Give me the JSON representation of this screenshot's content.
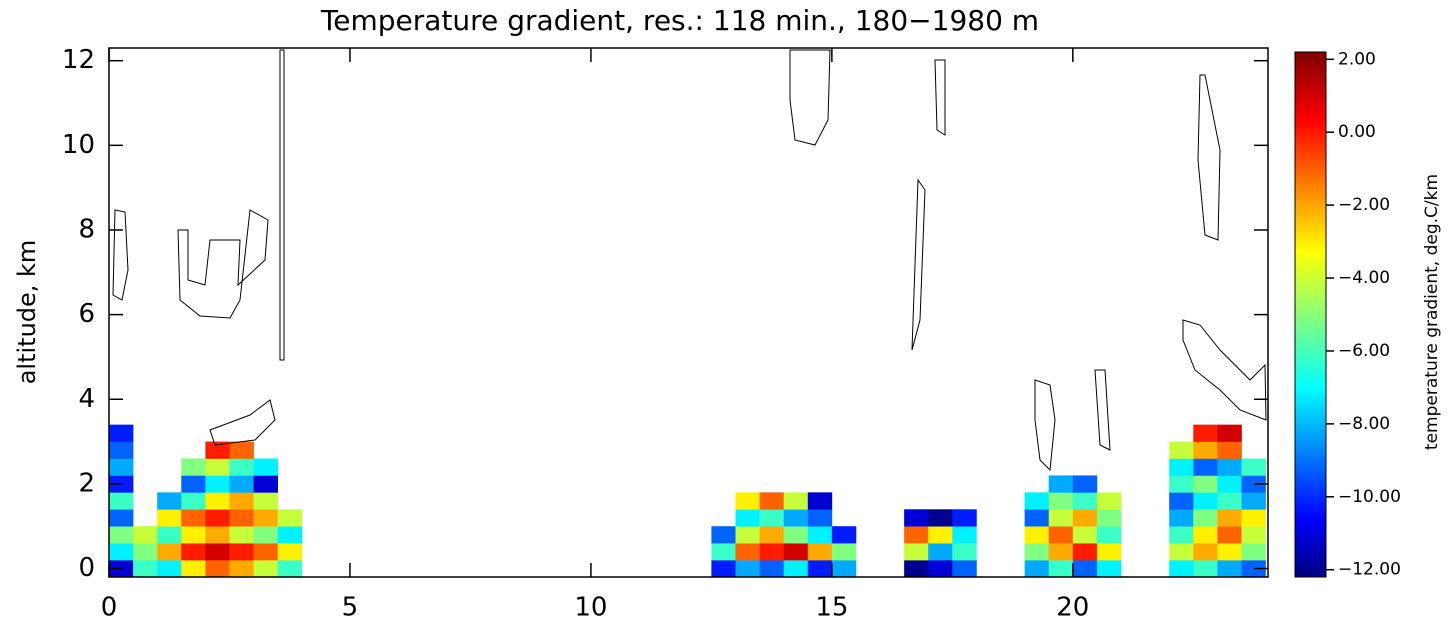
{
  "chart_data": {
    "type": "heatmap",
    "title": "Temperature gradient, res.: 118 min., 180−1980 m",
    "y_label": "altitude, km",
    "colorbar_label": "temperature gradient, deg.C/km",
    "colormap": "jet",
    "xlim": [
      0,
      24.05
    ],
    "ylim": [
      -0.2,
      12.3
    ],
    "xticks": [
      0,
      5,
      10,
      15,
      20
    ],
    "yticks": [
      0,
      2,
      4,
      6,
      8,
      10,
      12
    ],
    "clim": [
      -12.2,
      2.2
    ],
    "cticks": [
      {
        "value": 2,
        "label": "2.00"
      },
      {
        "value": 0,
        "label": "0.00"
      },
      {
        "value": -2,
        "label": "−2.00"
      },
      {
        "value": -4,
        "label": "−4.00"
      },
      {
        "value": -6,
        "label": "−6.00"
      },
      {
        "value": -8,
        "label": "−8.00"
      },
      {
        "value": -10,
        "label": "−10.00"
      },
      {
        "value": -12,
        "label": "−12.00"
      }
    ],
    "x": [
      0,
      0.5,
      1,
      1.5,
      2,
      2.5,
      3,
      3.5,
      4,
      4.5,
      5,
      5.5,
      6,
      6.5,
      7,
      7.5,
      8,
      8.5,
      9,
      9.5,
      10,
      10.5,
      11,
      11.5,
      12,
      12.5,
      13,
      13.5,
      14,
      14.5,
      15,
      15.5,
      16,
      16.5,
      17,
      17.5,
      18,
      18.5,
      19,
      19.5,
      20,
      20.5,
      21,
      21.5,
      22,
      22.5,
      23,
      23.5,
      24
    ],
    "y": [
      -0.2,
      0.2,
      0.6,
      1.0,
      1.4,
      1.8,
      2.2,
      2.6,
      3.0,
      3.4
    ],
    "values": [
      [
        -11,
        -6,
        -7,
        -3,
        -1,
        -2,
        -4,
        -6,
        null,
        null,
        null,
        null,
        null,
        null,
        null,
        null,
        null,
        null,
        null,
        null,
        null,
        null,
        null,
        null,
        null,
        -10,
        -8,
        -9,
        -7,
        -10,
        -8,
        null,
        null,
        -12,
        -11,
        -9,
        null,
        null,
        -8,
        -6,
        -9,
        -7,
        null,
        null,
        -7,
        -6,
        -8,
        -9
      ],
      [
        -7,
        -5,
        -2,
        0,
        1,
        0,
        -1,
        -3,
        null,
        null,
        null,
        null,
        null,
        null,
        null,
        null,
        null,
        null,
        null,
        null,
        null,
        null,
        null,
        null,
        null,
        -6,
        -1,
        0,
        1,
        -2,
        -5,
        null,
        null,
        -4,
        -8,
        -6,
        null,
        null,
        -5,
        -2,
        0,
        -3,
        null,
        null,
        -4,
        -2,
        -3,
        -5
      ],
      [
        -5,
        -4,
        -6,
        -3,
        -2,
        -4,
        -5,
        -7,
        null,
        null,
        null,
        null,
        null,
        null,
        null,
        null,
        null,
        null,
        null,
        null,
        null,
        null,
        null,
        null,
        null,
        -9,
        -4,
        -2,
        -5,
        -7,
        -10,
        null,
        null,
        -1,
        -3,
        -7,
        null,
        null,
        -3,
        -1,
        -4,
        -6,
        null,
        null,
        -6,
        -3,
        -1,
        -4
      ],
      [
        -9,
        null,
        -3,
        -1,
        0,
        -1,
        -2,
        -4,
        null,
        null,
        null,
        null,
        null,
        null,
        null,
        null,
        null,
        null,
        null,
        null,
        null,
        null,
        null,
        null,
        null,
        null,
        -7,
        -6,
        -8,
        -9,
        null,
        null,
        null,
        -11,
        -12,
        -10,
        null,
        null,
        -9,
        -4,
        -2,
        -5,
        null,
        null,
        -8,
        -5,
        -2,
        -3
      ],
      [
        -6,
        null,
        -8,
        -6,
        -3,
        -2,
        -4,
        null,
        null,
        null,
        null,
        null,
        null,
        null,
        null,
        null,
        null,
        null,
        null,
        null,
        null,
        null,
        null,
        null,
        null,
        null,
        -3,
        -1,
        -4,
        -11,
        null,
        null,
        null,
        null,
        null,
        null,
        null,
        null,
        -7,
        -5,
        -6,
        -4,
        null,
        null,
        -9,
        -7,
        -6,
        -8
      ],
      [
        -10,
        null,
        null,
        -9,
        -7,
        -8,
        -11,
        null,
        null,
        null,
        null,
        null,
        null,
        null,
        null,
        null,
        null,
        null,
        null,
        null,
        null,
        null,
        null,
        null,
        null,
        null,
        null,
        null,
        null,
        null,
        null,
        null,
        null,
        null,
        null,
        null,
        null,
        null,
        null,
        -8,
        -9,
        null,
        null,
        null,
        -6,
        -5,
        -7,
        -9
      ],
      [
        -8,
        null,
        null,
        -5,
        -4,
        -6,
        -7,
        null,
        null,
        null,
        null,
        null,
        null,
        null,
        null,
        null,
        null,
        null,
        null,
        null,
        null,
        null,
        null,
        null,
        null,
        null,
        null,
        null,
        null,
        null,
        null,
        null,
        null,
        null,
        null,
        null,
        null,
        null,
        null,
        null,
        null,
        null,
        null,
        null,
        -7,
        -9,
        -8,
        -6
      ],
      [
        -9,
        null,
        null,
        null,
        0,
        -1,
        null,
        null,
        null,
        null,
        null,
        null,
        null,
        null,
        null,
        null,
        null,
        null,
        null,
        null,
        null,
        null,
        null,
        null,
        null,
        null,
        null,
        null,
        null,
        null,
        null,
        null,
        null,
        null,
        null,
        null,
        null,
        null,
        null,
        null,
        null,
        null,
        null,
        null,
        -4,
        -2,
        -1,
        null
      ],
      [
        -10,
        null,
        null,
        null,
        null,
        null,
        null,
        null,
        null,
        null,
        null,
        null,
        null,
        null,
        null,
        null,
        null,
        null,
        null,
        null,
        null,
        null,
        null,
        null,
        null,
        null,
        null,
        null,
        null,
        null,
        null,
        null,
        null,
        null,
        null,
        null,
        null,
        null,
        null,
        null,
        null,
        null,
        null,
        null,
        null,
        0,
        1,
        null
      ]
    ]
  }
}
